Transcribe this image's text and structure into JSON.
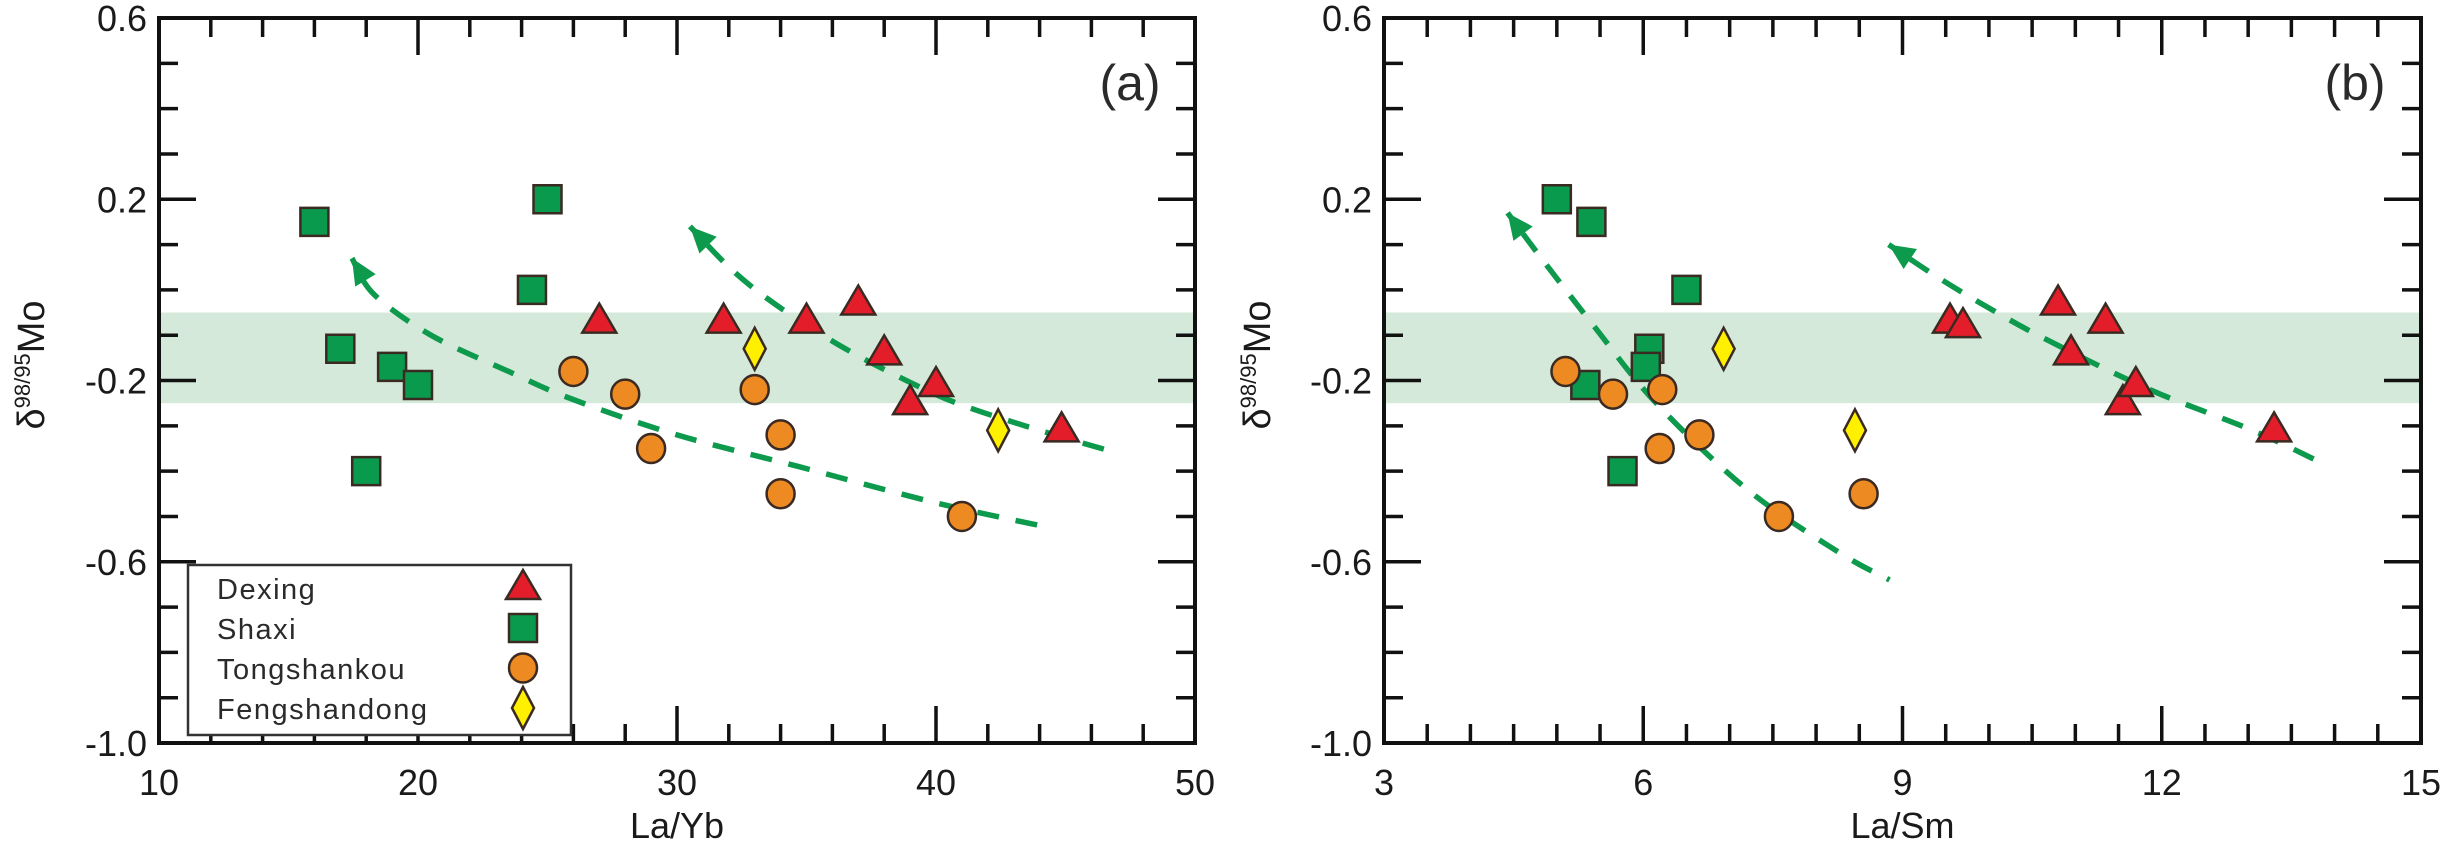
{
  "colors": {
    "Dexing": "#E31E2A",
    "Shaxi": "#0A9A4E",
    "Tongshankou": "#EE8A22",
    "Fengshandong": "#FFF000",
    "marker_edge": "#3a2a22",
    "band": "#D4E9D9",
    "trend": "#0D9A4D",
    "axis": "#111111"
  },
  "legend": {
    "entries": [
      {
        "label": "Dexing",
        "marker": "triangle"
      },
      {
        "label": "Shaxi",
        "marker": "square"
      },
      {
        "label": "Tongshankou",
        "marker": "circle"
      },
      {
        "label": "Fengshandong",
        "marker": "diamond"
      }
    ],
    "placement": "bottom-left of panel (a)"
  },
  "chart_data": [
    {
      "type": "scatter",
      "panel_label": "(a)",
      "xlabel": "La/Yb",
      "ylabel_main": "δ",
      "ylabel_sup": "98/95",
      "ylabel_tail": "Mo",
      "xlim": [
        10,
        50
      ],
      "ylim": [
        -1.0,
        0.6
      ],
      "x_major_ticks": [
        10,
        20,
        30,
        40,
        50
      ],
      "x_tick_labels": [
        "10",
        "20",
        "30",
        "40",
        "50"
      ],
      "x_minor_step": 2,
      "y_major_ticks": [
        0.6,
        0.2,
        -0.2,
        -0.6,
        -1.0
      ],
      "y_tick_labels": [
        "0.6",
        "0.2",
        "-0.2",
        "-0.6",
        "-1.0"
      ],
      "y_minor_step": 0.1,
      "grid": false,
      "band": {
        "y_from": -0.25,
        "y_to": -0.05
      },
      "series": [
        {
          "name": "Dexing",
          "marker": "triangle",
          "points": [
            [
              27,
              -0.07
            ],
            [
              31.8,
              -0.07
            ],
            [
              35,
              -0.07
            ],
            [
              37,
              -0.03
            ],
            [
              38,
              -0.14
            ],
            [
              39,
              -0.25
            ],
            [
              40,
              -0.21
            ],
            [
              44.85,
              -0.31
            ]
          ]
        },
        {
          "name": "Shaxi",
          "marker": "square",
          "points": [
            [
              16,
              0.15
            ],
            [
              17,
              -0.13
            ],
            [
              18,
              -0.4
            ],
            [
              19,
              -0.17
            ],
            [
              20,
              -0.21
            ],
            [
              24.4,
              0.0
            ],
            [
              25,
              0.2
            ]
          ]
        },
        {
          "name": "Tongshankou",
          "marker": "circle",
          "points": [
            [
              26,
              -0.18
            ],
            [
              28,
              -0.23
            ],
            [
              29,
              -0.35
            ],
            [
              33,
              -0.22
            ],
            [
              34,
              -0.32
            ],
            [
              34,
              -0.45
            ],
            [
              41,
              -0.5
            ]
          ]
        },
        {
          "name": "Fengshandong",
          "marker": "diamond",
          "points": [
            [
              33,
              -0.13
            ],
            [
              42.4,
              -0.31
            ]
          ]
        }
      ],
      "trends": [
        {
          "name": "trend-lower",
          "points": [
            [
              17.45,
              0.07
            ],
            [
              18.3,
              -0.01
            ],
            [
              20.5,
              -0.1
            ],
            [
              23.5,
              -0.18
            ],
            [
              25.9,
              -0.24
            ],
            [
              30,
              -0.32
            ],
            [
              34.7,
              -0.39
            ],
            [
              40,
              -0.47
            ],
            [
              44,
              -0.52
            ]
          ]
        },
        {
          "name": "trend-upper",
          "points": [
            [
              30.5,
              0.14
            ],
            [
              32.2,
              0.04
            ],
            [
              34,
              -0.04
            ],
            [
              36.2,
              -0.12
            ],
            [
              38.5,
              -0.19
            ],
            [
              40.8,
              -0.25
            ],
            [
              44,
              -0.31
            ],
            [
              47,
              -0.36
            ]
          ]
        }
      ]
    },
    {
      "type": "scatter",
      "panel_label": "(b)",
      "xlabel": "La/Sm",
      "ylabel_main": "δ",
      "ylabel_sup": "98/95",
      "ylabel_tail": "Mo",
      "xlim": [
        3,
        15
      ],
      "ylim": [
        -1.0,
        0.6
      ],
      "x_major_ticks": [
        3,
        6,
        9,
        12,
        15
      ],
      "x_tick_labels": [
        "3",
        "6",
        "9",
        "12",
        "15"
      ],
      "x_minor_step": 0.5,
      "y_major_ticks": [
        0.6,
        0.2,
        -0.2,
        -0.6,
        -1.0
      ],
      "y_tick_labels": [
        "0.6",
        "0.2",
        "-0.2",
        "-0.6",
        "-1.0"
      ],
      "y_minor_step": 0.1,
      "grid": false,
      "band": {
        "y_from": -0.25,
        "y_to": -0.05
      },
      "series": [
        {
          "name": "Dexing",
          "marker": "triangle",
          "points": [
            [
              9.55,
              -0.07
            ],
            [
              9.7,
              -0.08
            ],
            [
              10.8,
              -0.03
            ],
            [
              10.95,
              -0.14
            ],
            [
              11.35,
              -0.07
            ],
            [
              11.55,
              -0.25
            ],
            [
              11.7,
              -0.21
            ],
            [
              13.3,
              -0.31
            ]
          ]
        },
        {
          "name": "Shaxi",
          "marker": "square",
          "points": [
            [
              5.0,
              0.2
            ],
            [
              5.4,
              0.15
            ],
            [
              6.5,
              0.0
            ],
            [
              6.07,
              -0.13
            ],
            [
              6.03,
              -0.17
            ],
            [
              5.33,
              -0.21
            ],
            [
              5.76,
              -0.4
            ]
          ]
        },
        {
          "name": "Tongshankou",
          "marker": "circle",
          "points": [
            [
              5.1,
              -0.18
            ],
            [
              5.65,
              -0.23
            ],
            [
              6.22,
              -0.22
            ],
            [
              6.19,
              -0.35
            ],
            [
              6.65,
              -0.32
            ],
            [
              7.57,
              -0.5
            ],
            [
              8.55,
              -0.45
            ]
          ]
        },
        {
          "name": "Fengshandong",
          "marker": "diamond",
          "points": [
            [
              6.93,
              -0.13
            ],
            [
              8.45,
              -0.31
            ]
          ]
        }
      ],
      "trends": [
        {
          "name": "trend-left",
          "points": [
            [
              4.43,
              0.17
            ],
            [
              4.82,
              0.07
            ],
            [
              5.43,
              -0.08
            ],
            [
              6.15,
              -0.25
            ],
            [
              7.2,
              -0.44
            ],
            [
              8.27,
              -0.58
            ],
            [
              8.85,
              -0.64
            ]
          ]
        },
        {
          "name": "trend-right",
          "points": [
            [
              8.84,
              0.1
            ],
            [
              9.39,
              0.03
            ],
            [
              10.0,
              -0.04
            ],
            [
              10.67,
              -0.11
            ],
            [
              11.86,
              -0.22
            ],
            [
              13.05,
              -0.31
            ],
            [
              13.83,
              -0.38
            ]
          ]
        }
      ]
    }
  ]
}
